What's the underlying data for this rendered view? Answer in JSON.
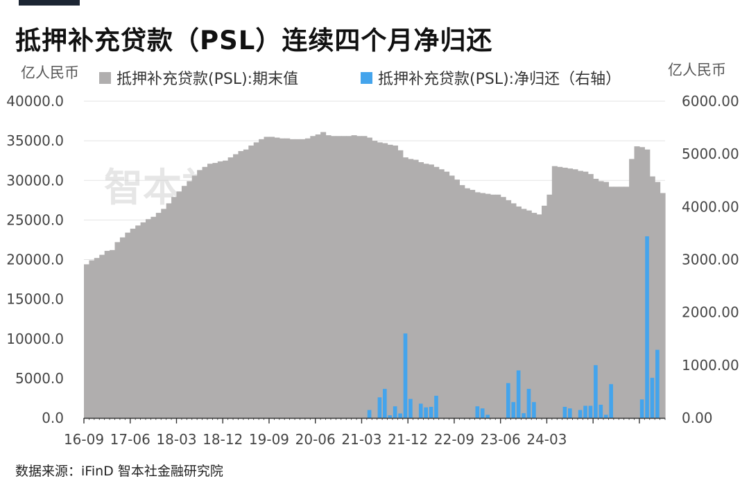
{
  "title": "抵押补充贷款（PSL）连续四个月净归还",
  "source": "数据来源：iFinD 智本社金融研究院",
  "watermark": "智本社数据中心",
  "colors": {
    "stock": "#b0aeae",
    "net": "#44a4ec",
    "title_bar": "#1c2533"
  },
  "chart_data": {
    "type": "bar",
    "left_unit": "亿人民币",
    "right_unit": "亿人民币",
    "left_ticks": [
      "40000.0",
      "35000.0",
      "30000.0",
      "25000.0",
      "20000.0",
      "15000.0",
      "10000.0",
      "5000.0",
      "0.0"
    ],
    "right_ticks": [
      "6000.00",
      "5000.00",
      "4000.00",
      "3000.00",
      "2000.00",
      "1000.00",
      "0.00"
    ],
    "ylim_left": [
      0,
      40000
    ],
    "ylim_right": [
      0,
      6000
    ],
    "x_tick_labels": [
      "16-09",
      "17-06",
      "18-03",
      "18-12",
      "19-09",
      "20-06",
      "21-03",
      "21-12",
      "22-09",
      "23-06",
      "24-03"
    ],
    "x_start": "2016-09",
    "x_end": "2024-05",
    "grid": true,
    "legend_position": "top",
    "series": [
      {
        "name": "抵押补充贷款(PSL):期末值",
        "axis": "left",
        "type": "area-step",
        "values": [
          19400,
          19900,
          20200,
          20600,
          21100,
          21200,
          22200,
          22800,
          23400,
          23900,
          24300,
          24700,
          25100,
          25400,
          25900,
          26400,
          27100,
          27900,
          28600,
          29300,
          29900,
          30600,
          31300,
          31700,
          32100,
          32200,
          32400,
          32500,
          32900,
          33300,
          33700,
          33900,
          34400,
          34800,
          35200,
          35500,
          35500,
          35400,
          35300,
          35300,
          35200,
          35200,
          35200,
          35300,
          35600,
          35800,
          36100,
          35700,
          35600,
          35600,
          35600,
          35600,
          35700,
          35600,
          35600,
          35400,
          35000,
          34800,
          34700,
          34500,
          34400,
          33800,
          32900,
          32700,
          32600,
          32300,
          32100,
          32000,
          31700,
          31400,
          31100,
          30600,
          30100,
          29400,
          29000,
          28800,
          28500,
          28400,
          28300,
          28200,
          28200,
          27900,
          27500,
          27100,
          26700,
          26400,
          26200,
          25900,
          25700,
          26800,
          28200,
          31800,
          31700,
          31600,
          31500,
          31400,
          31200,
          31100,
          30800,
          30200,
          29900,
          29800,
          29200,
          29200,
          29200,
          29200,
          32700,
          34300,
          34200,
          33900,
          30500,
          29800,
          28400
        ]
      },
      {
        "name": "抵押补充贷款(PSL):净归还（右轴）",
        "axis": "right",
        "type": "bar",
        "values": [
          0,
          0,
          0,
          0,
          0,
          0,
          0,
          0,
          0,
          0,
          0,
          0,
          0,
          0,
          0,
          0,
          0,
          0,
          0,
          0,
          0,
          0,
          0,
          0,
          0,
          0,
          0,
          0,
          0,
          0,
          0,
          0,
          0,
          0,
          0,
          0,
          0,
          0,
          0,
          0,
          0,
          0,
          0,
          0,
          0,
          0,
          0,
          0,
          0,
          0,
          0,
          0,
          0,
          0,
          0,
          150,
          0,
          390,
          550,
          50,
          220,
          85,
          1600,
          360,
          0,
          270,
          200,
          210,
          420,
          0,
          0,
          0,
          0,
          0,
          0,
          0,
          220,
          180,
          60,
          0,
          0,
          0,
          660,
          300,
          900,
          90,
          550,
          300,
          0,
          0,
          0,
          0,
          0,
          210,
          180,
          0,
          150,
          230,
          230,
          1000,
          250,
          60,
          640,
          0,
          0,
          0,
          0,
          0,
          350,
          3440,
          760,
          1290
        ]
      }
    ]
  }
}
